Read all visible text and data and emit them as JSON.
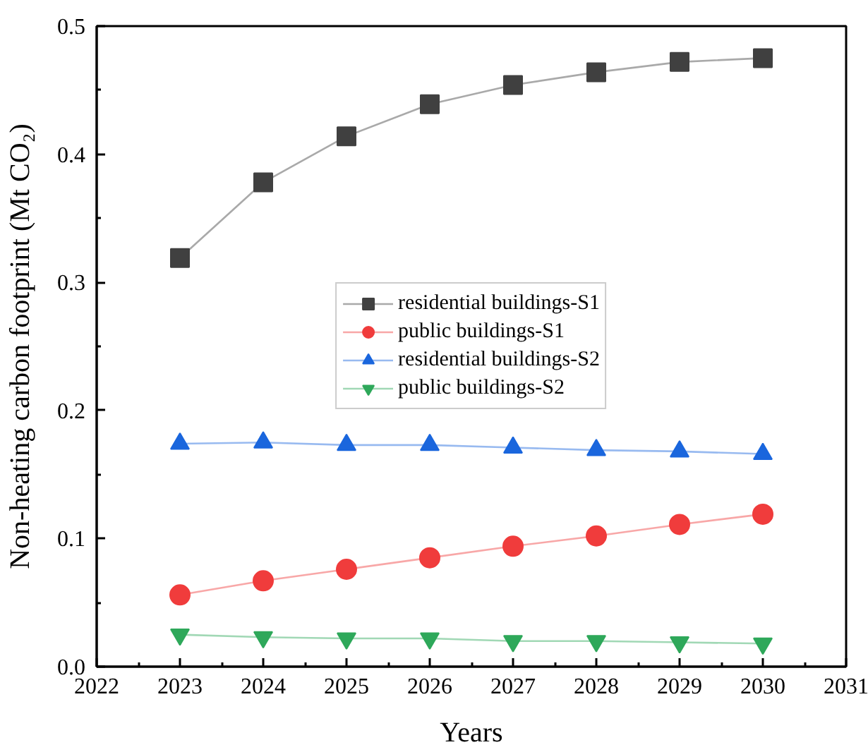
{
  "chart_data": {
    "type": "line",
    "xlabel": "Years",
    "ylabel": "Non-heating carbon footprint (Mt CO₂)",
    "x": [
      2023,
      2024,
      2025,
      2026,
      2027,
      2028,
      2029,
      2030
    ],
    "xlim": [
      2022,
      2031
    ],
    "xticks": [
      2022,
      {
        "value": 2022.5,
        "label": null
      },
      2023,
      {
        "value": 2023.5,
        "label": null
      },
      2024,
      {
        "value": 2024.5,
        "label": null
      },
      2025,
      {
        "value": 2025.5,
        "label": null
      },
      2026,
      {
        "value": 2026.5,
        "label": null
      },
      2027,
      {
        "value": 2027.5,
        "label": null
      },
      2028,
      {
        "value": 2028.5,
        "label": null
      },
      2029,
      {
        "value": 2029.5,
        "label": null
      },
      2030,
      {
        "value": 2030.5,
        "label": null
      },
      2031
    ],
    "ylim": [
      0,
      0.5
    ],
    "yticks": [
      {
        "value": 0,
        "label": "0.0"
      },
      {
        "value": 0.05,
        "label": null
      },
      0.1,
      {
        "value": 0.15,
        "label": null
      },
      0.2,
      {
        "value": 0.25,
        "label": null
      },
      0.3,
      {
        "value": 0.35,
        "label": null
      },
      0.4,
      {
        "value": 0.45,
        "label": null
      },
      0.5
    ],
    "legend": "center",
    "line_style": "solid",
    "series": [
      {
        "name": "residential buildings-S1",
        "color": "#404040",
        "marker": "square",
        "values": [
          0.319,
          0.378,
          0.414,
          0.439,
          0.454,
          0.464,
          0.472,
          0.475
        ]
      },
      {
        "name": "public buildings-S1",
        "color": "#f03c3c",
        "marker": "circle",
        "values": [
          0.056,
          0.067,
          0.076,
          0.085,
          0.094,
          0.102,
          0.111,
          0.119
        ]
      },
      {
        "name": "residential buildings-S2",
        "color": "#1a66dd",
        "marker": "triangle",
        "values": [
          0.174,
          0.175,
          0.173,
          0.173,
          0.171,
          0.169,
          0.168,
          0.166
        ]
      },
      {
        "name": "public buildings-S2",
        "color": "#2ea85a",
        "marker": "triangle-down",
        "values": [
          0.025,
          0.023,
          0.022,
          0.022,
          0.02,
          0.02,
          0.019,
          0.018
        ]
      }
    ]
  }
}
